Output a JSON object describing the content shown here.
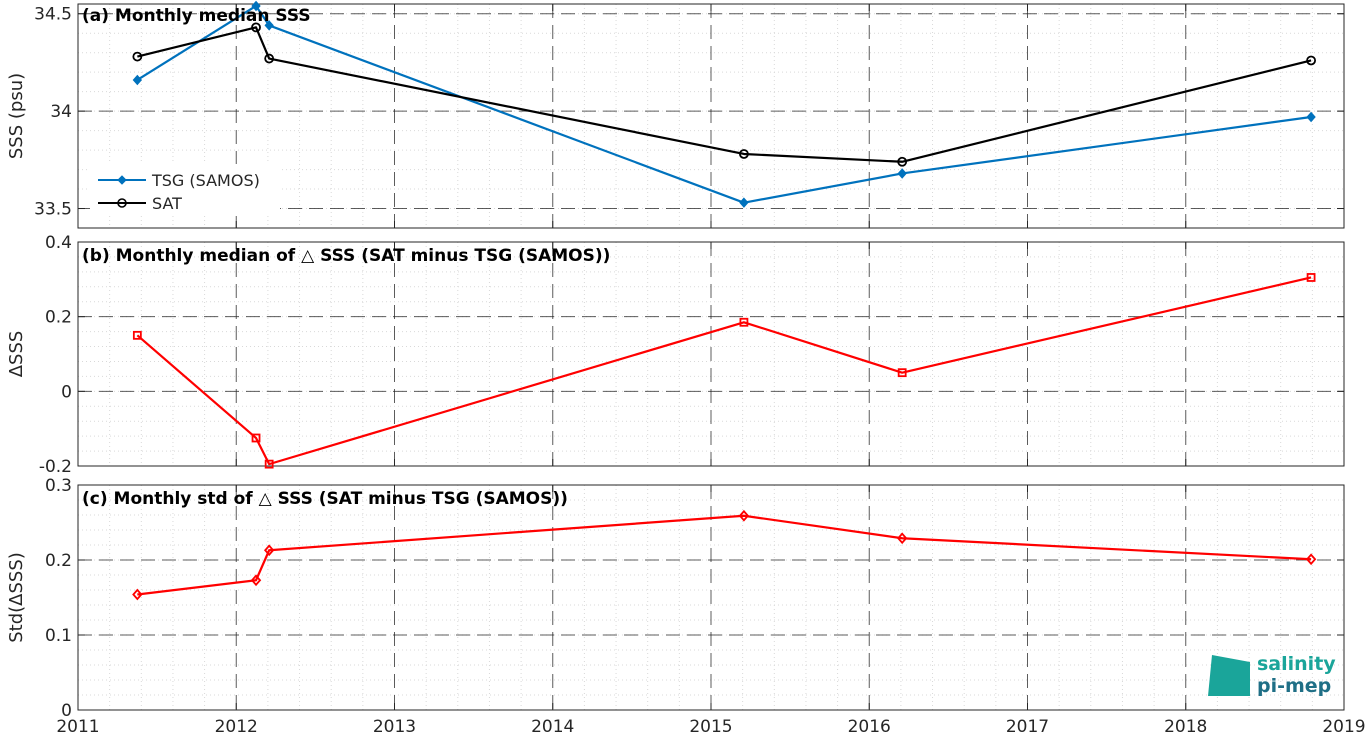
{
  "colors": {
    "tsg": "#0072BD",
    "sat": "#000000",
    "delta": "#FF0000",
    "logo_teal": "#1aa59a",
    "logo_dark": "#1f6f86"
  },
  "x_ticks": [
    "2011",
    "2012",
    "2013",
    "2014",
    "2015",
    "2016",
    "2017",
    "2018",
    "2019"
  ],
  "logo": {
    "line1": "salinity",
    "line2": "pi-mep"
  },
  "chart_data": [
    {
      "type": "line",
      "title": "(a) Monthly median SSS",
      "xlabel": "",
      "ylabel": "SSS (psu)",
      "xlim": [
        2011,
        2019
      ],
      "ylim": [
        33.4,
        34.55
      ],
      "y_ticks": [
        "33.5",
        "34",
        "34.5"
      ],
      "grid": true,
      "legend_position": "bottom-left",
      "series": [
        {
          "name": "TSG (SAMOS)",
          "marker": "diamond",
          "x": [
            2011.375,
            2012.125,
            2012.208,
            2015.208,
            2016.208,
            2018.792
          ],
          "values": [
            34.16,
            34.54,
            34.44,
            33.53,
            33.68,
            33.97
          ]
        },
        {
          "name": "SAT",
          "marker": "circle",
          "x": [
            2011.375,
            2012.125,
            2012.208,
            2015.208,
            2016.208,
            2018.792
          ],
          "values": [
            34.28,
            34.43,
            34.27,
            33.78,
            33.74,
            34.26
          ]
        }
      ]
    },
    {
      "type": "line",
      "title": "(b) Monthly median of △ SSS (SAT minus TSG (SAMOS))",
      "xlabel": "",
      "ylabel": "ΔSSS",
      "xlim": [
        2011,
        2019
      ],
      "ylim": [
        -0.2,
        0.4
      ],
      "y_ticks": [
        "-0.2",
        "0",
        "0.2",
        "0.4"
      ],
      "grid": true,
      "series": [
        {
          "marker": "square",
          "x": [
            2011.375,
            2012.125,
            2012.208,
            2015.208,
            2016.208,
            2018.792
          ],
          "values": [
            0.15,
            -0.125,
            -0.195,
            0.185,
            0.05,
            0.305
          ]
        }
      ]
    },
    {
      "type": "line",
      "title": "(c) Monthly std of △ SSS (SAT minus TSG (SAMOS))",
      "xlabel": "",
      "ylabel": "Std(ΔSSS)",
      "xlim": [
        2011,
        2019
      ],
      "ylim": [
        0,
        0.3
      ],
      "y_ticks": [
        "0",
        "0.1",
        "0.2",
        "0.3"
      ],
      "grid": true,
      "series": [
        {
          "marker": "diamond",
          "x": [
            2011.375,
            2012.125,
            2012.208,
            2015.208,
            2016.208,
            2018.792
          ],
          "values": [
            0.154,
            0.173,
            0.213,
            0.259,
            0.229,
            0.201
          ]
        }
      ]
    }
  ]
}
